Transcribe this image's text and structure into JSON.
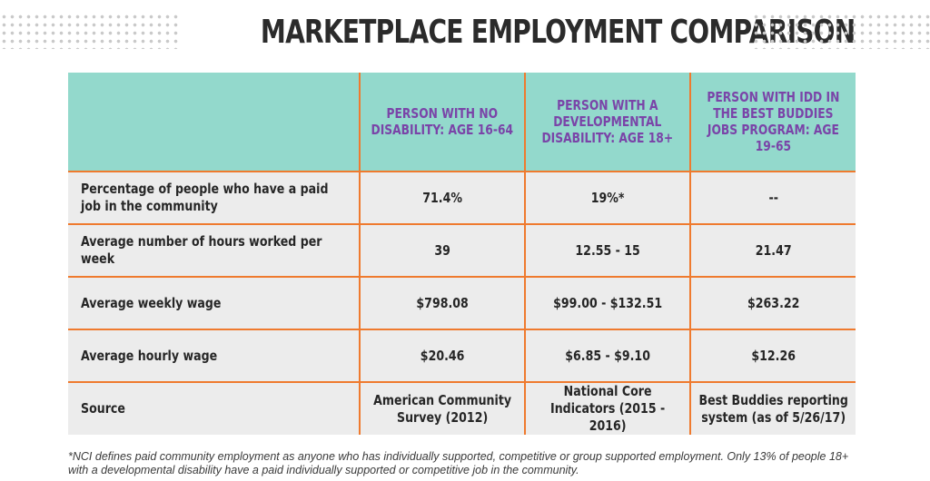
{
  "title": "MARKETPLACE EMPLOYMENT COMPARISON",
  "table": {
    "columns": [
      "",
      "PERSON WITH NO DISABILITY: Age 16-64",
      "PERSON WITH A DEVELOPMENTAL DISABILITY: Age 18+",
      "PERSON WITH IDD IN THE BEST BUDDIES JOBS PROGRAM: Age 19-65"
    ],
    "rows": [
      {
        "label": "Percentage of people who have a paid job in the community",
        "values": [
          "71.4%",
          "19%*",
          "--"
        ]
      },
      {
        "label": "Average number of hours worked per week",
        "values": [
          "39",
          "12.55 - 15",
          "21.47"
        ]
      },
      {
        "label": "Average weekly wage",
        "values": [
          "$798.08",
          "$99.00 - $132.51",
          "$263.22"
        ]
      },
      {
        "label": "Average hourly wage",
        "values": [
          "$20.46",
          "$6.85 - $9.10",
          "$12.26"
        ]
      },
      {
        "label": "Source",
        "values": [
          "American Community Survey (2012)",
          "National Core Indicators (2015 - 2016)",
          "Best Buddies reporting system (as of 5/26/17)"
        ]
      }
    ]
  },
  "footnote": "*NCI defines paid community employment as anyone who has individually supported, competitive or group supported employment. Only 13% of people 18+ with a developmental disability have a paid individually supported or competitive job in the community.",
  "colors": {
    "header_bg": "#93d9cc",
    "header_text": "#7a44a8",
    "grid_lines": "#ef7a2e",
    "cell_bg": "#ececec"
  }
}
